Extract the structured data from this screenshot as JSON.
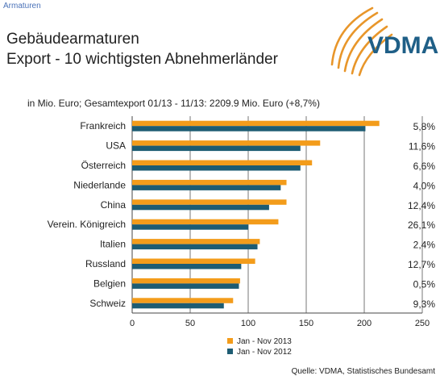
{
  "header": {
    "section": "Armaturen",
    "title_line1": "Gebäudearmaturen",
    "title_line2": "Export - 10 wichtigsten Abnehmerländer",
    "logo_text": "VDMA"
  },
  "footer": {
    "source": "Quelle: VDMA, Statistisches Bundesamt"
  },
  "colors": {
    "series_2013": "#f39c1b",
    "series_2012": "#1d5c73",
    "logo_swoosh": "#e8962a",
    "logo_text": "#1f5f87"
  },
  "chart_data": {
    "type": "bar",
    "orientation": "horizontal",
    "subtitle": "in Mio. Euro; Gesamtexport 01/13 - 11/13: 2209.9 Mio. Euro (+8,7%)",
    "categories": [
      "Frankreich",
      "USA",
      "Österreich",
      "Niederlande",
      "China",
      "Verein. Königreich",
      "Italien",
      "Russland",
      "Belgien",
      "Schweiz"
    ],
    "series": [
      {
        "name": "Jan - Nov 2013",
        "values": [
          213,
          162,
          155,
          133,
          133,
          126,
          110,
          106,
          93,
          87
        ]
      },
      {
        "name": "Jan - Nov 2012",
        "values": [
          201,
          145,
          145,
          128,
          118,
          100,
          108,
          94,
          92,
          79
        ]
      }
    ],
    "change_labels": [
      "5,8%",
      "11,6%",
      "6,6%",
      "4,0%",
      "12,4%",
      "26,1%",
      "2,4%",
      "12,7%",
      "0,5%",
      "9,3%"
    ],
    "xlim": [
      0,
      250
    ],
    "xticks": [
      0,
      50,
      100,
      150,
      200,
      250
    ],
    "grid": true,
    "legend": "bottom-center"
  }
}
